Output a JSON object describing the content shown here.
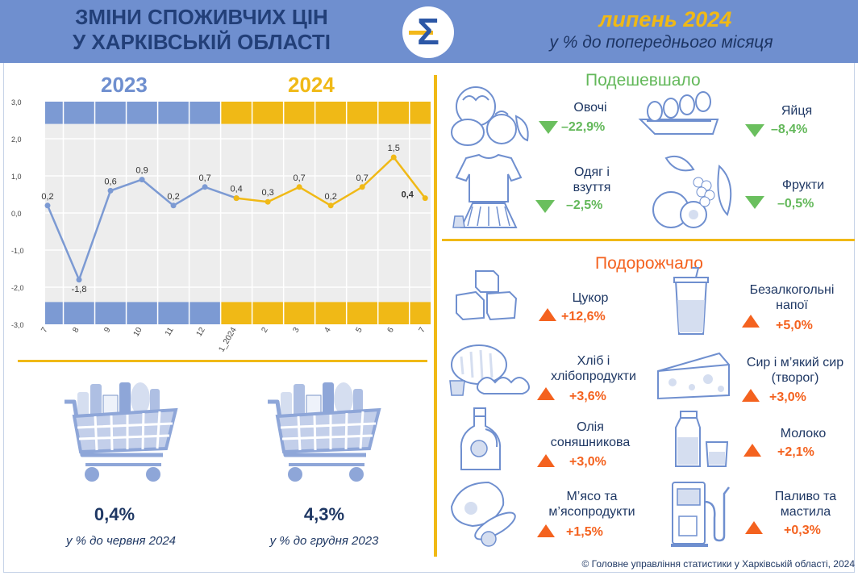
{
  "header": {
    "title_line1": "ЗМІНИ СПОЖИВЧИХ ЦІН",
    "title_line2": "У ХАРКІВСЬКІЙ ОБЛАСТІ",
    "logo_glyph": "Σ",
    "month": "липень 2024",
    "subtitle": "у % до попереднього місяця"
  },
  "years": {
    "left": "2023",
    "right": "2024"
  },
  "chart_data": {
    "type": "line",
    "categories": [
      "7",
      "8",
      "9",
      "10",
      "11",
      "12",
      "1_2024",
      "2",
      "3",
      "4",
      "5",
      "6",
      "7"
    ],
    "series": [
      {
        "color": "#7c9ad3",
        "values": [
          0.2,
          -1.8,
          0.6,
          0.9,
          0.2,
          0.7,
          0.4,
          null,
          null,
          null,
          null,
          null,
          null
        ]
      },
      {
        "color": "#f0b916",
        "values": [
          null,
          null,
          null,
          null,
          null,
          null,
          0.4,
          0.3,
          0.7,
          0.2,
          0.7,
          1.5,
          0.4
        ]
      }
    ],
    "data_labels": [
      "0,2",
      "-1,8",
      "0,6",
      "0,9",
      "0,2",
      "0,7",
      "0,4",
      "0,3",
      "0,7",
      "0,2",
      "0,7",
      "1,5",
      "0,4"
    ],
    "y_ticks": [
      "3,0",
      "2,0",
      "1,0",
      "0,0",
      "-1,0",
      "-2,0",
      "-3,0"
    ],
    "ylim": [
      -3,
      3
    ],
    "grid": true,
    "band_colors": {
      "2023": "#7c9ad3",
      "2024": "#f0b916"
    }
  },
  "carts": [
    {
      "value": "0,4%",
      "note": "у % до червня 2024"
    },
    {
      "value": "4,3%",
      "note": "у % до грудня 2023"
    }
  ],
  "cheaper": {
    "title": "Подешевшало",
    "items": [
      {
        "label": "Овочі",
        "value": "–22,9%",
        "icon": "vegetables-icon"
      },
      {
        "label": "Яйця",
        "value": "–8,4%",
        "icon": "eggs-icon"
      },
      {
        "label_1": "Одяг і",
        "label_2": "взуття",
        "value": "–2,5%",
        "icon": "clothes-icon"
      },
      {
        "label": "Фрукти",
        "value": "–0,5%",
        "icon": "fruits-icon"
      }
    ]
  },
  "pricier": {
    "title": "Подорожчало",
    "items": [
      {
        "label": "Цукор",
        "value": "+12,6%",
        "icon": "sugar-icon"
      },
      {
        "label_1": "Безалкогольні",
        "label_2": "напої",
        "value": "+5,0%",
        "icon": "drink-icon"
      },
      {
        "label_1": "Хліб і",
        "label_2": "хлібопродукти",
        "value": "+3,6%",
        "icon": "bread-icon"
      },
      {
        "label_1": "Сир і м’який сир",
        "label_2": "(творог)",
        "value": "+3,0%",
        "icon": "cheese-icon"
      },
      {
        "label_1": "Олія",
        "label_2": "соняшникова",
        "value": "+3,0%",
        "icon": "oil-icon"
      },
      {
        "label": "Молоко",
        "value": "+2,1%",
        "icon": "milk-icon"
      },
      {
        "label_1": "М’ясо та",
        "label_2": "м’ясопродукти",
        "value": "+1,5%",
        "icon": "meat-icon"
      },
      {
        "label_1": "Паливо та",
        "label_2": "мастила",
        "value": "+0,3%",
        "icon": "fuel-icon"
      }
    ]
  },
  "colors": {
    "header_bg": "#6f8fcf",
    "accent_yellow": "#f0b916",
    "green": "#63b85a",
    "orange": "#f4621f",
    "navy": "#1f3864"
  },
  "footer": "© Головне управління статистики у Харківській області, 2024"
}
